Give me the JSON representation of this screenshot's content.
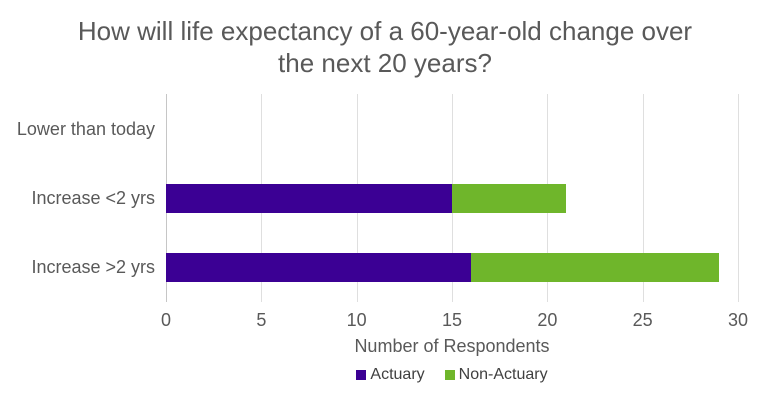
{
  "chart_data": {
    "type": "bar",
    "orientation": "horizontal",
    "stacked": true,
    "title": "How will life expectancy of a 60-year-old change over the next 20 years?",
    "categories": [
      "Lower than today",
      "Increase <2 yrs",
      "Increase >2 yrs"
    ],
    "series": [
      {
        "name": "Actuary",
        "color": "#3B0094",
        "values": [
          0,
          15,
          16
        ]
      },
      {
        "name": "Non-Actuary",
        "color": "#6FB62B",
        "values": [
          0,
          6,
          13
        ]
      }
    ],
    "totals": [
      0,
      21,
      29
    ],
    "xlabel": "Number of Respondents",
    "xlim": [
      0,
      30
    ],
    "xticks": [
      "0",
      "5",
      "10",
      "15",
      "20",
      "25",
      "30"
    ],
    "grid": true,
    "legend_position": "bottom"
  },
  "style": {
    "background": "#FFFFFF",
    "title_color": "#595959",
    "label_color": "#595959",
    "legend_text_color": "#404040",
    "gridline_color": "#DFDFDF",
    "zero_axis_color": "#C6C6C6"
  }
}
